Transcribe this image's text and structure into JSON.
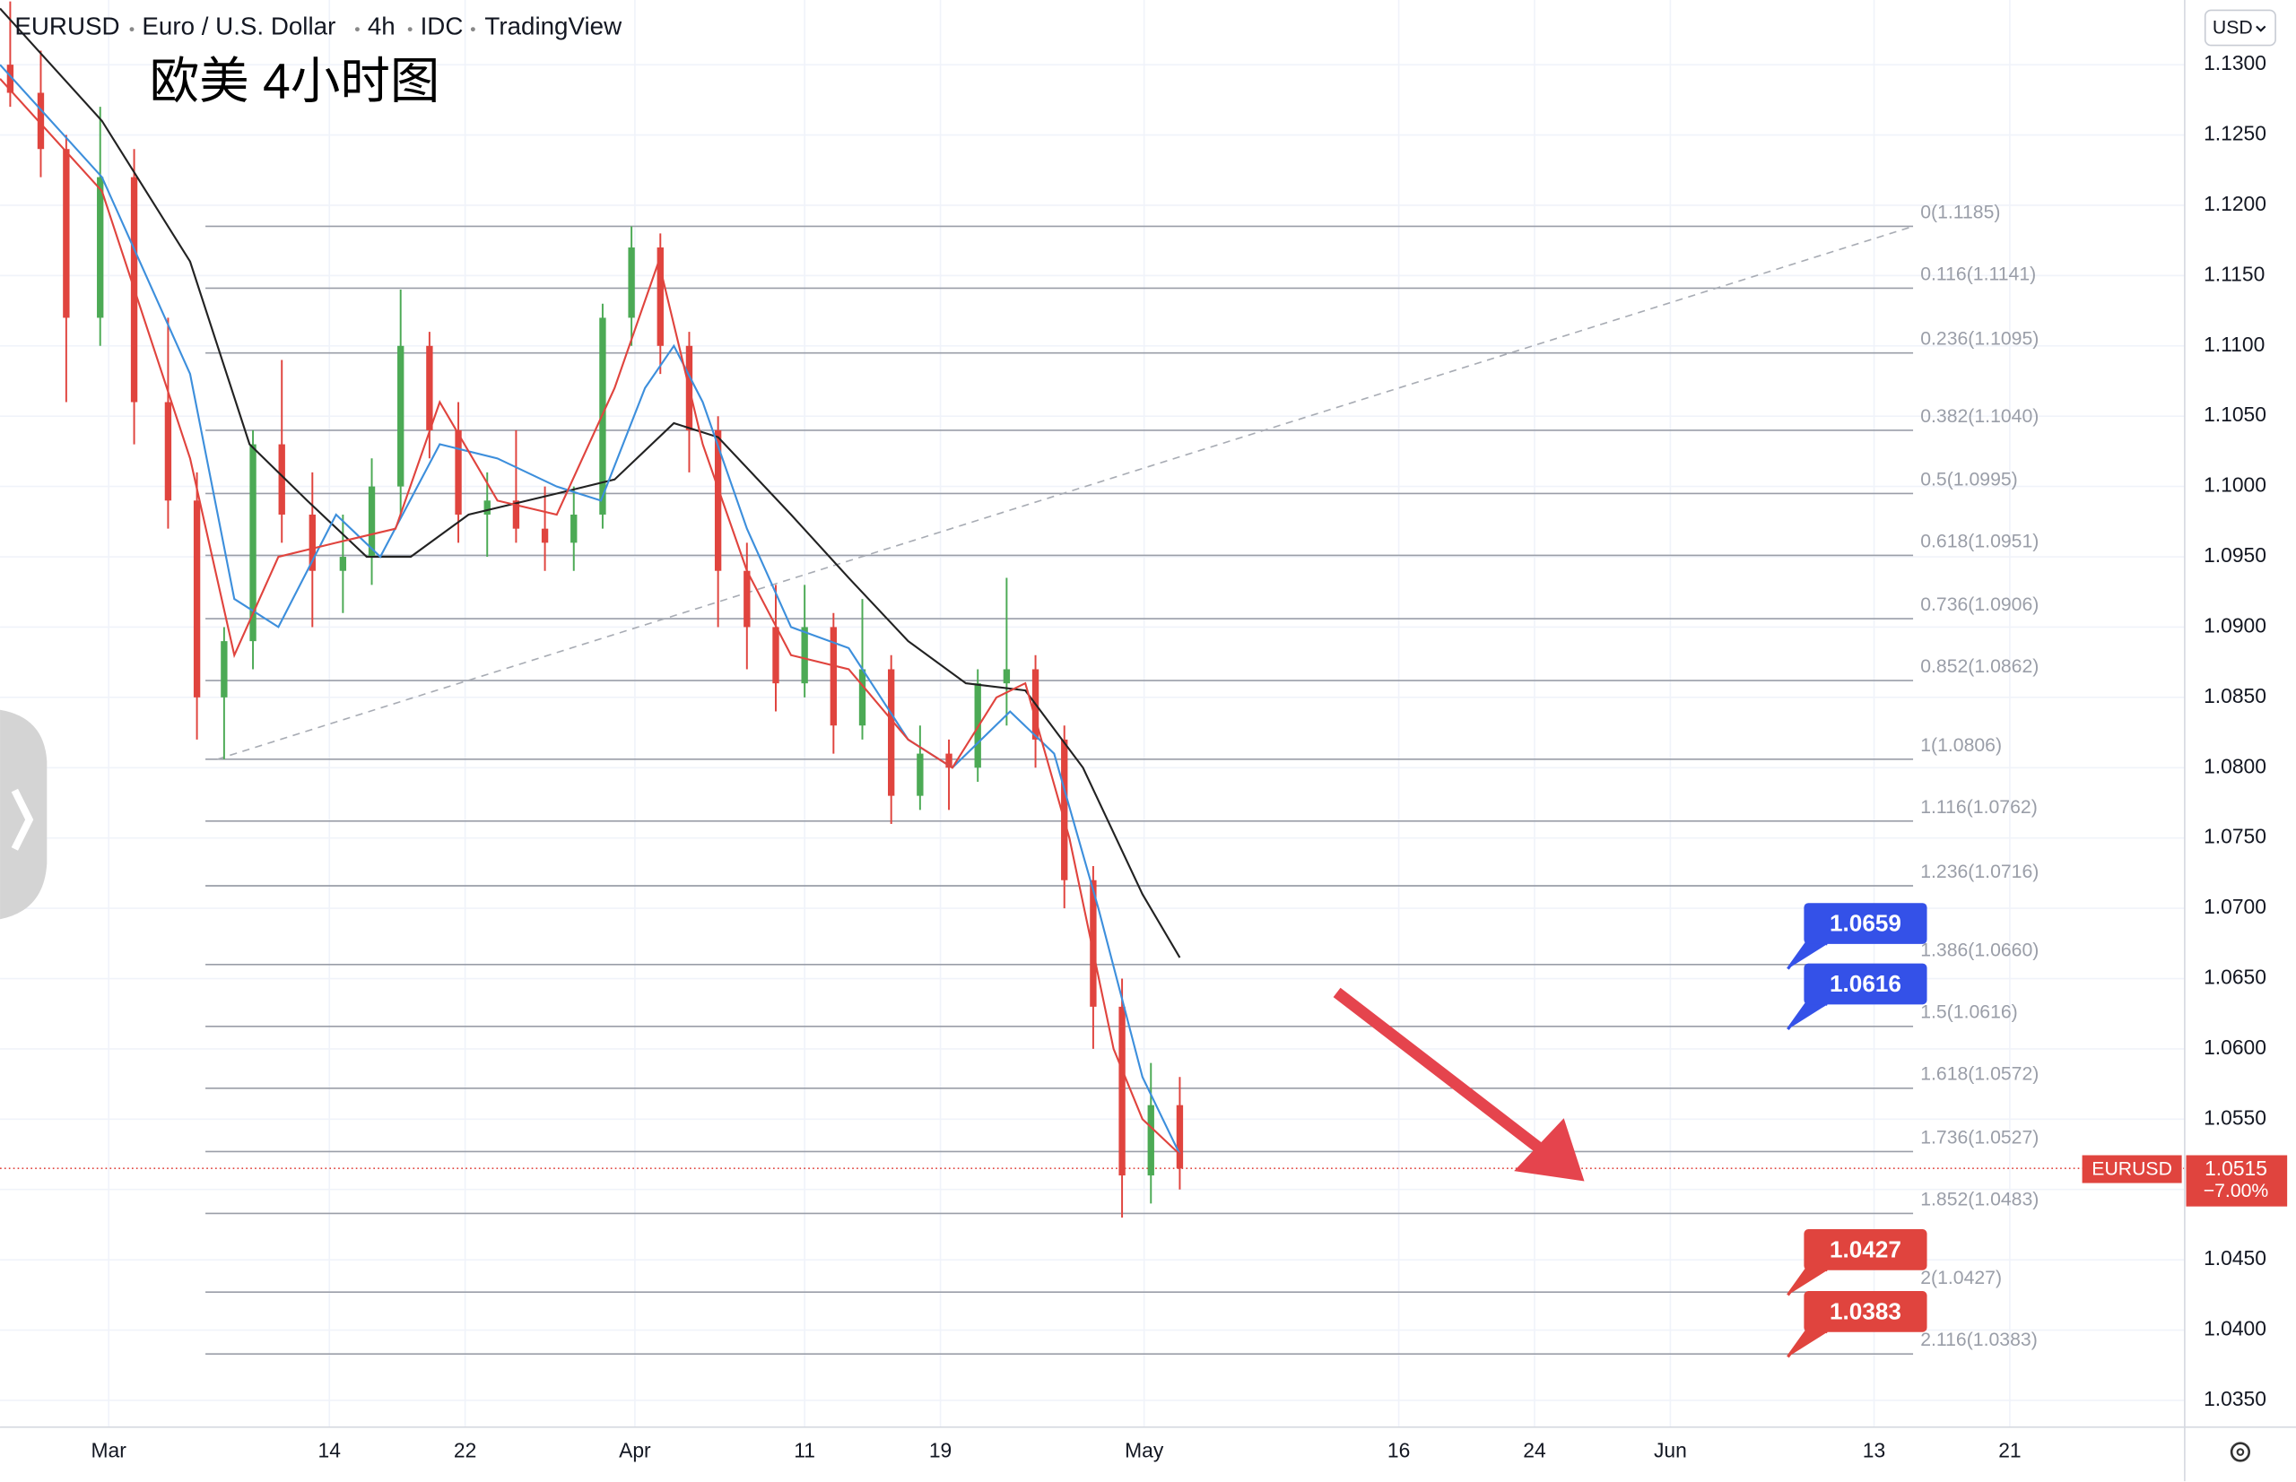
{
  "header": {
    "symbol": "EURUSD",
    "name": "Euro / U.S. Dollar",
    "interval": "4h",
    "exchange": "IDC",
    "brand": "TradingView",
    "currency": "USD"
  },
  "chart_data": {
    "type": "candlestick",
    "annotation": "欧美 4小时图",
    "up_color": "#4caa55",
    "down_color": "#e0443e",
    "x": [
      54.2,
      56,
      57.5,
      59.5,
      61.5,
      63.5,
      65.2,
      66.8,
      68.5,
      70.2,
      72,
      73.8,
      75.5,
      77.2,
      78.9,
      80.6,
      82.3,
      84,
      85.7,
      87.4,
      89.1,
      90.8,
      92.5,
      94.2,
      95.9,
      97.6,
      99.3,
      101,
      102.7,
      104.4,
      106.1,
      107.8,
      109.5,
      111.2,
      112.9,
      114.6,
      116.3,
      118,
      119.7,
      121.4,
      123.1
    ],
    "open": [
      1.13,
      1.128,
      1.124,
      1.112,
      1.122,
      1.106,
      1.099,
      1.085,
      1.089,
      1.103,
      1.098,
      1.094,
      1.095,
      1.1,
      1.11,
      1.104,
      1.098,
      1.099,
      1.097,
      1.096,
      1.098,
      1.112,
      1.117,
      1.11,
      1.104,
      1.094,
      1.09,
      1.086,
      1.09,
      1.083,
      1.087,
      1.078,
      1.081,
      1.08,
      1.086,
      1.087,
      1.082,
      1.072,
      1.063,
      1.051,
      1.056
    ],
    "high": [
      1.1345,
      1.131,
      1.125,
      1.127,
      1.124,
      1.112,
      1.101,
      1.09,
      1.104,
      1.109,
      1.101,
      1.098,
      1.102,
      1.114,
      1.111,
      1.106,
      1.101,
      1.104,
      1.1,
      1.1,
      1.113,
      1.1185,
      1.118,
      1.111,
      1.105,
      1.096,
      1.093,
      1.093,
      1.091,
      1.092,
      1.088,
      1.083,
      1.082,
      1.087,
      1.0935,
      1.088,
      1.083,
      1.073,
      1.065,
      1.059,
      1.058
    ],
    "low": [
      1.127,
      1.122,
      1.106,
      1.11,
      1.103,
      1.097,
      1.082,
      1.0806,
      1.087,
      1.096,
      1.09,
      1.091,
      1.093,
      1.098,
      1.102,
      1.096,
      1.095,
      1.096,
      1.094,
      1.094,
      1.097,
      1.11,
      1.108,
      1.101,
      1.09,
      1.087,
      1.084,
      1.085,
      1.081,
      1.082,
      1.076,
      1.077,
      1.077,
      1.079,
      1.083,
      1.08,
      1.07,
      1.06,
      1.048,
      1.049,
      1.05
    ],
    "close": [
      1.128,
      1.124,
      1.112,
      1.122,
      1.106,
      1.099,
      1.085,
      1.089,
      1.103,
      1.098,
      1.094,
      1.095,
      1.1,
      1.11,
      1.104,
      1.098,
      1.099,
      1.097,
      1.096,
      1.098,
      1.112,
      1.117,
      1.11,
      1.104,
      1.094,
      1.09,
      1.086,
      1.09,
      1.083,
      1.087,
      1.078,
      1.081,
      1.08,
      1.086,
      1.087,
      1.082,
      1.072,
      1.063,
      1.051,
      1.056,
      1.0515
    ],
    "ma": [
      {
        "color": "#222222",
        "x": [
          53.6,
          59.6,
          64.8,
          68.3,
          71.7,
          75.2,
          77.8,
          81.2,
          86.4,
          89.8,
          93.3,
          95.9,
          100.2,
          103.6,
          107.1,
          110.5,
          114,
          117.4,
          120.9,
          123.1
        ],
        "values": [
          1.134,
          1.126,
          1.116,
          1.103,
          1.099,
          1.095,
          1.095,
          1.098,
          1.0995,
          1.1005,
          1.1045,
          1.1035,
          1.098,
          1.0935,
          1.089,
          1.086,
          1.0855,
          1.08,
          1.071,
          1.0665
        ]
      },
      {
        "color": "#3d8fdc",
        "x": [
          53.6,
          59.6,
          64.8,
          67.4,
          70,
          73.4,
          76,
          79.5,
          82.9,
          86.4,
          89,
          91.6,
          93.3,
          95,
          97.6,
          100.2,
          103.6,
          107.1,
          109.7,
          113.1,
          115.7,
          118.3,
          120.9,
          123.1
        ],
        "values": [
          1.13,
          1.122,
          1.108,
          1.092,
          1.09,
          1.098,
          1.095,
          1.103,
          1.102,
          1.1,
          1.099,
          1.107,
          1.11,
          1.106,
          1.097,
          1.09,
          1.0885,
          1.082,
          1.08,
          1.084,
          1.081,
          1.07,
          1.058,
          1.0525
        ]
      },
      {
        "color": "#e0443e",
        "x": [
          53.6,
          59.6,
          64.8,
          67.4,
          70,
          73.4,
          76.9,
          79.5,
          82.9,
          86.4,
          89.8,
          92.4,
          95,
          97.6,
          100.2,
          103.6,
          107.1,
          109.7,
          112.3,
          114,
          116.6,
          119.2,
          120.9,
          123.1
        ],
        "values": [
          1.129,
          1.121,
          1.102,
          1.088,
          1.095,
          1.096,
          1.097,
          1.106,
          1.099,
          1.098,
          1.107,
          1.116,
          1.103,
          1.094,
          1.088,
          1.087,
          1.082,
          1.08,
          1.085,
          1.086,
          1.075,
          1.06,
          1.055,
          1.0525
        ]
      }
    ],
    "fib": {
      "x": [
        65.7,
        166.3
      ],
      "color": "#9a9ea8",
      "levels": [
        {
          "value": 1.1185,
          "label": "0(1.1185)"
        },
        {
          "value": 1.1141,
          "label": "0.116(1.1141)"
        },
        {
          "value": 1.1095,
          "label": "0.236(1.1095)"
        },
        {
          "value": 1.104,
          "label": "0.382(1.1040)"
        },
        {
          "value": 1.0995,
          "label": "0.5(1.0995)"
        },
        {
          "value": 1.0951,
          "label": "0.618(1.0951)"
        },
        {
          "value": 1.0906,
          "label": "0.736(1.0906)"
        },
        {
          "value": 1.0862,
          "label": "0.852(1.0862)"
        },
        {
          "value": 1.0806,
          "label": "1(1.0806)"
        },
        {
          "value": 1.0762,
          "label": "1.116(1.0762)"
        },
        {
          "value": 1.0716,
          "label": "1.236(1.0716)"
        },
        {
          "value": 1.066,
          "label": "1.386(1.0660)"
        },
        {
          "value": 1.0616,
          "label": "1.5(1.0616)"
        },
        {
          "value": 1.0572,
          "label": "1.618(1.0572)"
        },
        {
          "value": 1.0527,
          "label": "1.736(1.0527)"
        },
        {
          "value": 1.0483,
          "label": "1.852(1.0483)"
        },
        {
          "value": 1.0427,
          "label": "2(1.0427)"
        },
        {
          "value": 1.0383,
          "label": "2.116(1.0383)"
        }
      ]
    },
    "trendline": {
      "x": [
        66.4,
        166.3
      ],
      "values": [
        1.0806,
        1.1185
      ]
    },
    "price_tags": [
      {
        "value": 1.0659,
        "color": "#3451e8"
      },
      {
        "value": 1.0616,
        "color": "#3451e8"
      },
      {
        "value": 1.0427,
        "color": "#e0443e"
      },
      {
        "value": 1.0383,
        "color": "#e0443e"
      }
    ],
    "last": {
      "symbol": "EURUSD",
      "value": 1.0515,
      "change": {
        "value": -7.0,
        "label": "−7.00%"
      },
      "color": "#e0443e"
    },
    "xlim": [
      53.6,
      182.3
    ],
    "ylim": [
      1.0331,
      1.1346
    ],
    "grid": true,
    "xticks": [
      {
        "value": 60,
        "label": "Mar"
      },
      {
        "value": 73,
        "label": "14"
      },
      {
        "value": 81,
        "label": "22"
      },
      {
        "value": 91,
        "label": "Apr"
      },
      {
        "value": 101,
        "label": "11"
      },
      {
        "value": 109,
        "label": "19"
      },
      {
        "value": 121,
        "label": "May"
      },
      {
        "value": 136,
        "label": "16"
      },
      {
        "value": 144,
        "label": "24"
      },
      {
        "value": 152,
        "label": "Jun"
      },
      {
        "value": 164,
        "label": "13"
      },
      {
        "value": 172,
        "label": "21"
      }
    ],
    "yticks": [
      {
        "value": 1.035,
        "label": "1.0350"
      },
      {
        "value": 1.04,
        "label": "1.0400"
      },
      {
        "value": 1.045,
        "label": "1.0450"
      },
      {
        "value": 1.05,
        "label": "1.0500"
      },
      {
        "value": 1.055,
        "label": "1.0550"
      },
      {
        "value": 1.06,
        "label": "1.0600"
      },
      {
        "value": 1.065,
        "label": "1.0650"
      },
      {
        "value": 1.07,
        "label": "1.0700"
      },
      {
        "value": 1.075,
        "label": "1.0750"
      },
      {
        "value": 1.08,
        "label": "1.0800"
      },
      {
        "value": 1.085,
        "label": "1.0850"
      },
      {
        "value": 1.09,
        "label": "1.0900"
      },
      {
        "value": 1.095,
        "label": "1.0950"
      },
      {
        "value": 1.1,
        "label": "1.1000"
      },
      {
        "value": 1.105,
        "label": "1.1050"
      },
      {
        "value": 1.11,
        "label": "1.1100"
      },
      {
        "value": 1.115,
        "label": "1.1150"
      },
      {
        "value": 1.12,
        "label": "1.1200"
      },
      {
        "value": 1.125,
        "label": "1.1250"
      },
      {
        "value": 1.13,
        "label": "1.1300"
      }
    ]
  }
}
